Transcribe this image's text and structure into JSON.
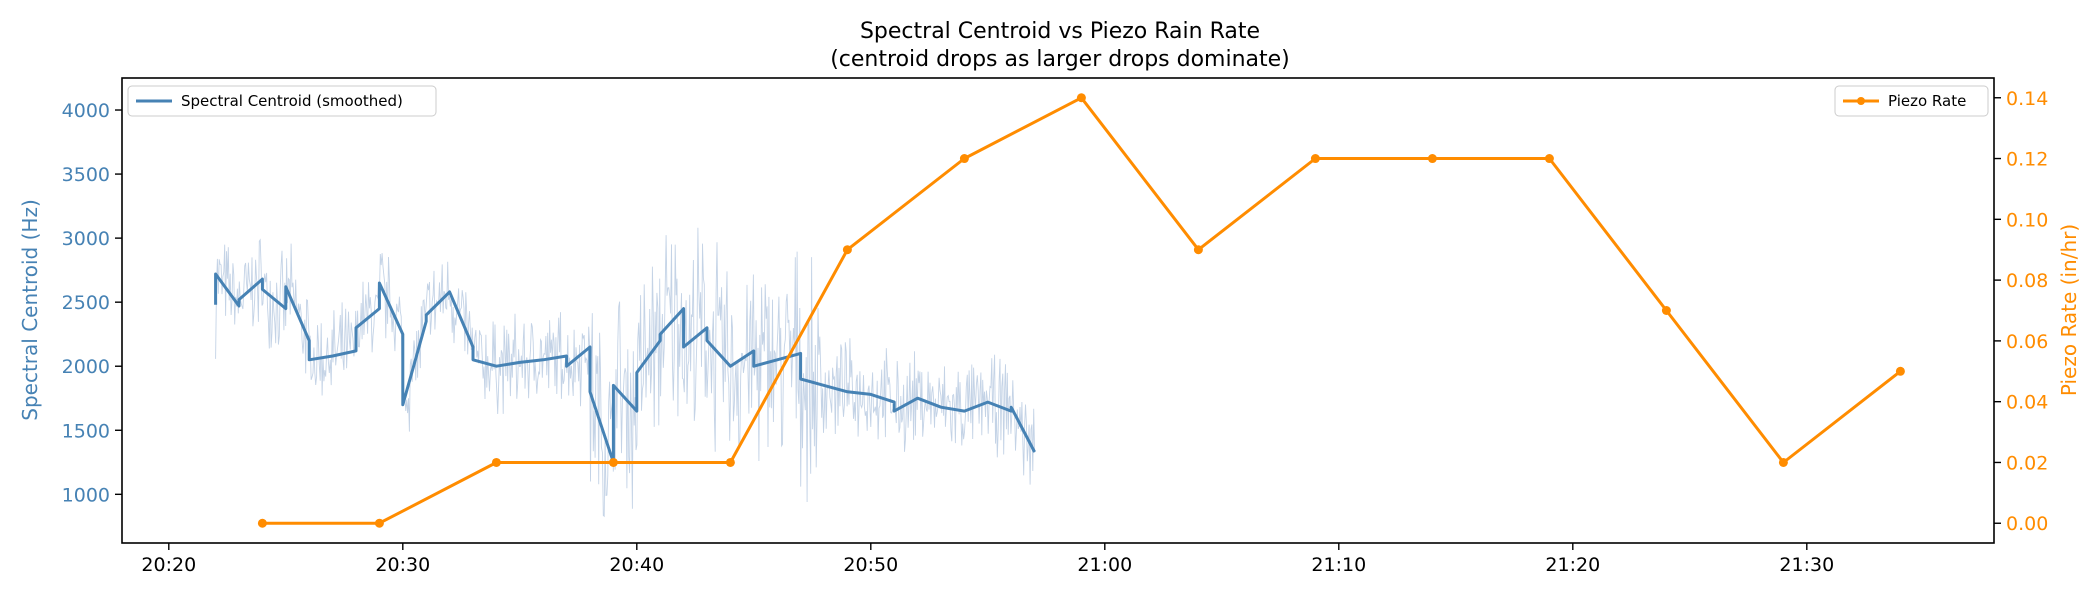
{
  "chart_data": {
    "type": "line",
    "title": "Spectral Centroid vs Piezo Rain Rate",
    "subtitle": "(centroid drops as larger drops dominate)",
    "xlabel": "",
    "ylabel_left": "Spectral Centroid (Hz)",
    "ylabel_right": "Piezo Rate (in/hr)",
    "x_range": [
      "20:18",
      "21:38"
    ],
    "x_ticks": [
      "20:20",
      "20:30",
      "20:40",
      "20:50",
      "21:00",
      "21:10",
      "21:20",
      "21:30"
    ],
    "ylim_left": [
      620,
      4250
    ],
    "yticks_left": [
      1000,
      1500,
      2000,
      2500,
      3000,
      3500,
      4000
    ],
    "ylim_right": [
      -0.0065,
      0.1465
    ],
    "yticks_right": [
      "0.00",
      "0.02",
      "0.04",
      "0.06",
      "0.08",
      "0.10",
      "0.12",
      "0.14"
    ],
    "grid": false,
    "colors": {
      "centroid": "#4682b4",
      "centroid_raw": "#b0c4de",
      "piezo": "#ff8c00",
      "axes": "#000000"
    },
    "series": [
      {
        "name": "Spectral Centroid (smoothed)",
        "axis": "left",
        "time_range": [
          "20:22",
          "20:57"
        ],
        "x": [
          "20:22",
          "20:22",
          "20:23",
          "20:23",
          "20:24",
          "20:24",
          "20:25",
          "20:25",
          "20:26",
          "20:26",
          "20:27",
          "20:28",
          "20:28",
          "20:29",
          "20:29",
          "20:30",
          "20:30",
          "20:31",
          "20:31",
          "20:32",
          "20:33",
          "20:33",
          "20:34",
          "20:35",
          "20:36",
          "20:37",
          "20:37",
          "20:38",
          "20:38",
          "20:39",
          "20:39",
          "20:40",
          "20:40",
          "20:41",
          "20:41",
          "20:42",
          "20:42",
          "20:43",
          "20:43",
          "20:44",
          "20:45",
          "20:45",
          "20:46",
          "20:47",
          "20:47",
          "20:48",
          "20:49",
          "20:50",
          "20:51",
          "20:51",
          "20:52",
          "20:53",
          "20:54",
          "20:55",
          "20:56",
          "20:56",
          "20:57"
        ],
        "values": [
          2480,
          2720,
          2470,
          2520,
          2680,
          2600,
          2450,
          2620,
          2200,
          2050,
          2080,
          2120,
          2300,
          2450,
          2650,
          2250,
          1700,
          2350,
          2400,
          2580,
          2150,
          2050,
          2000,
          2030,
          2050,
          2080,
          2000,
          2150,
          1800,
          1250,
          1850,
          1650,
          1950,
          2200,
          2250,
          2450,
          2150,
          2300,
          2200,
          2000,
          2120,
          2000,
          2050,
          2100,
          1900,
          1850,
          1800,
          1780,
          1720,
          1650,
          1750,
          1680,
          1650,
          1720,
          1650,
          1680,
          1330
        ]
      },
      {
        "name": "Piezo Rate",
        "axis": "right",
        "x": [
          "20:24",
          "20:29",
          "20:34",
          "20:39",
          "20:44",
          "20:49",
          "20:54",
          "20:59",
          "21:04",
          "21:09",
          "21:14",
          "21:19",
          "21:24",
          "21:29",
          "21:34"
        ],
        "values": [
          0.0,
          0.0,
          0.02,
          0.02,
          0.02,
          0.09,
          0.12,
          0.14,
          0.09,
          0.12,
          0.12,
          0.12,
          0.07,
          0.02,
          0.05
        ]
      }
    ],
    "legends": [
      {
        "label": "Spectral Centroid (smoothed)",
        "position": "upper-left"
      },
      {
        "label": "Piezo Rate",
        "position": "upper-right"
      }
    ]
  }
}
